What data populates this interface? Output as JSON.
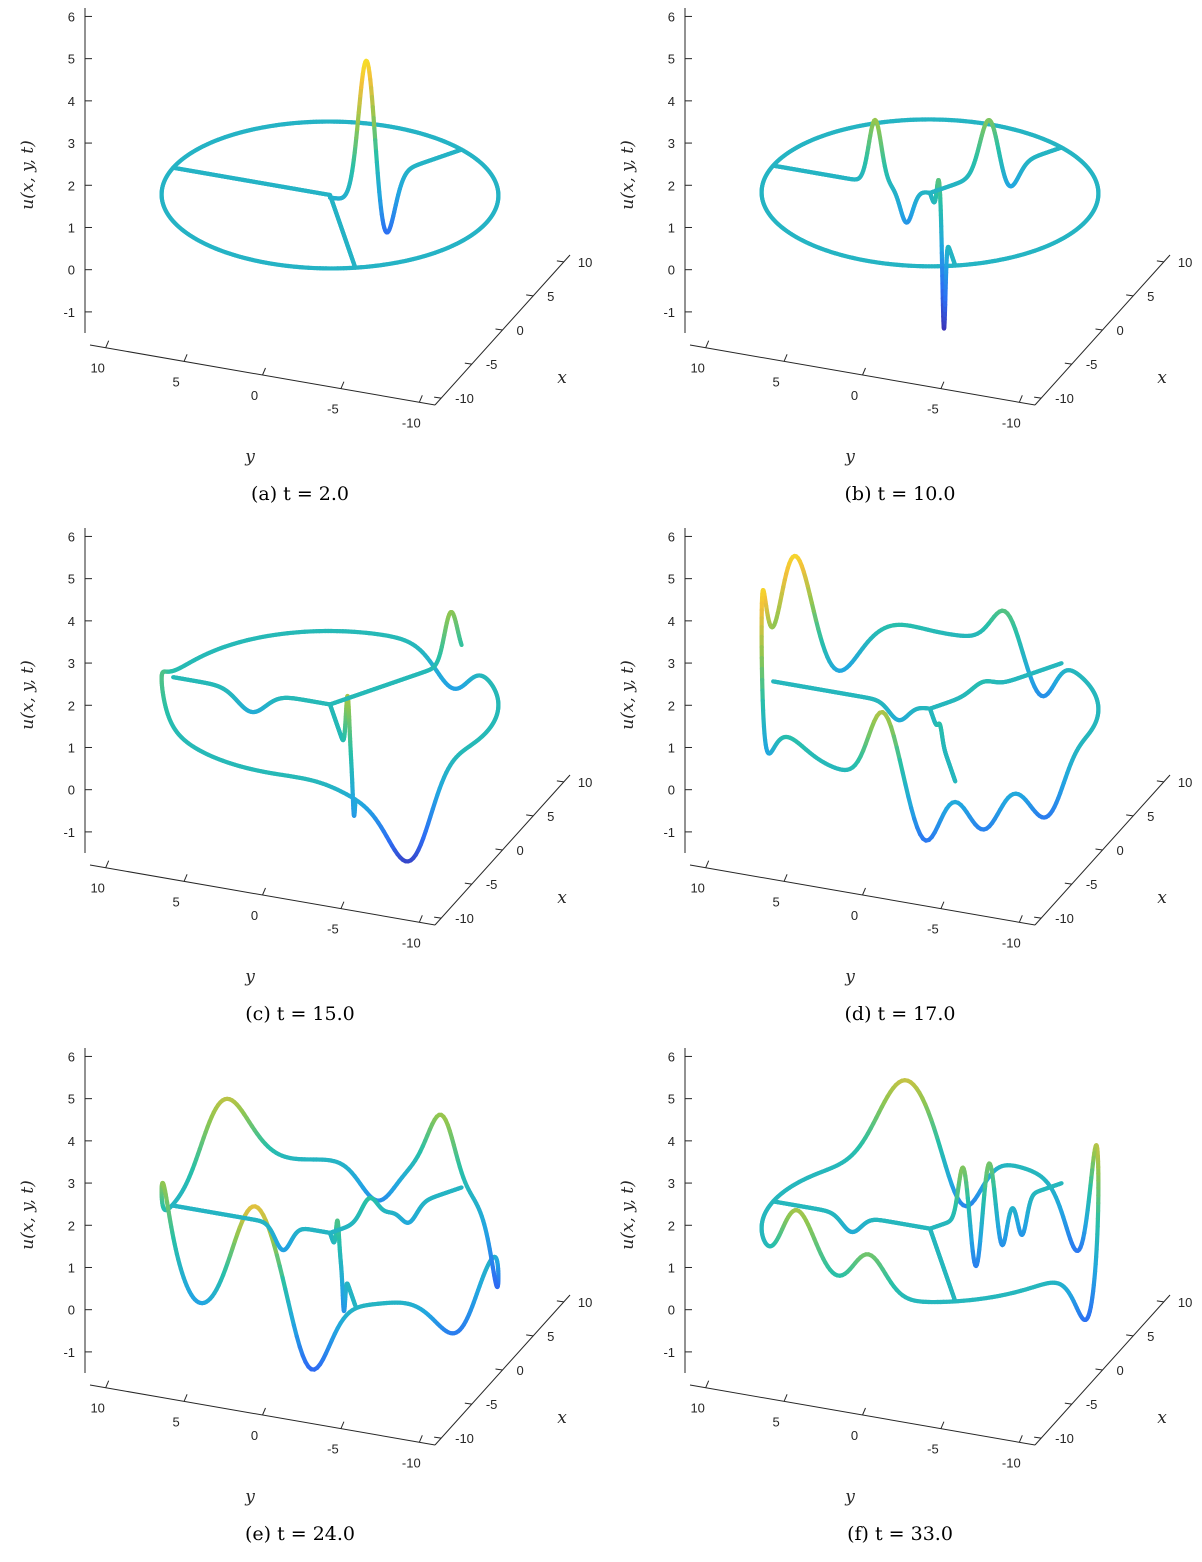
{
  "figure": {
    "captions": [
      "(a) t = 2.0",
      "(b) t = 10.0",
      "(c) t = 15.0",
      "(d) t = 17.0",
      "(e) t = 24.0",
      "(f) t = 33.0"
    ]
  },
  "chart_data": [
    {
      "type": "line3d",
      "panel": "a",
      "caption": "(a) t = 2.0",
      "time": 2.0,
      "zlabel": "u(x, y, t)",
      "xlabel": "x",
      "ylabel": "y",
      "zlim": [
        -1.5,
        6.2
      ],
      "xlim": [
        -11,
        11
      ],
      "ylim": [
        -11,
        11
      ],
      "z_ticks": [
        "-1",
        "0",
        "1",
        "2",
        "3",
        "4",
        "5",
        "6"
      ],
      "x_ticks": [
        "-10",
        "-5",
        "0",
        "5",
        "10"
      ],
      "y_ticks": [
        "10",
        "5",
        "0",
        "-5",
        "-10"
      ],
      "colormap": [
        "#3e26a8",
        "#2d6ef4",
        "#22a7e0",
        "#28c0a8",
        "#90c650",
        "#f3c03a",
        "#f9fb15"
      ],
      "graph": {
        "ring_radius": 10,
        "edge_angles_deg": [
          90,
          210,
          330
        ],
        "ring_level": 0.85,
        "edge_level": 0.85,
        "pulses": [
          {
            "edge": 2,
            "s": 0.28,
            "amp": 3.1,
            "width": 0.6
          },
          {
            "edge": 2,
            "s": 0.42,
            "amp": -1.5,
            "width": 0.7
          },
          {
            "edge": 2,
            "s": 0.12,
            "amp": -0.2,
            "width": 0.8
          }
        ]
      }
    },
    {
      "type": "line3d",
      "panel": "b",
      "caption": "(b) t = 10.0",
      "time": 10.0,
      "zlabel": "u(x, y, t)",
      "xlabel": "x",
      "ylabel": "y",
      "zlim": [
        -1.5,
        6.2
      ],
      "xlim": [
        -11,
        11
      ],
      "ylim": [
        -11,
        11
      ],
      "z_ticks": [
        "-1",
        "0",
        "1",
        "2",
        "3",
        "4",
        "5",
        "6"
      ],
      "x_ticks": [
        "-10",
        "-5",
        "0",
        "5",
        "10"
      ],
      "y_ticks": [
        "10",
        "5",
        "0",
        "-5",
        "-10"
      ],
      "colormap": [
        "#3e26a8",
        "#2d6ef4",
        "#22a7e0",
        "#28c0a8",
        "#90c650",
        "#f3c03a",
        "#f9fb15"
      ],
      "graph": {
        "ring_radius": 10,
        "edge_angles_deg": [
          90,
          210,
          330
        ],
        "ring_level": 0.9,
        "edge_level": 0.9,
        "pulses": [
          {
            "edge": 0,
            "s": 0.35,
            "amp": 1.5,
            "width": 0.4
          },
          {
            "edge": 0,
            "s": 0.15,
            "amp": -0.8,
            "width": 0.4
          },
          {
            "edge": 1,
            "s": 0.35,
            "amp": 0.9,
            "width": 0.8
          },
          {
            "edge": 1,
            "s": 0.55,
            "amp": -2.3,
            "width": 0.6
          },
          {
            "edge": 2,
            "s": 0.45,
            "amp": 1.3,
            "width": 0.7
          },
          {
            "edge": 2,
            "s": 0.6,
            "amp": -0.6,
            "width": 0.7
          }
        ]
      }
    },
    {
      "type": "line3d",
      "panel": "c",
      "caption": "(c) t = 15.0",
      "time": 15.0,
      "zlabel": "u(x, y, t)",
      "xlabel": "x",
      "ylabel": "y",
      "zlim": [
        -1.5,
        6.2
      ],
      "xlim": [
        -11,
        11
      ],
      "ylim": [
        -11,
        11
      ],
      "z_ticks": [
        "-1",
        "0",
        "1",
        "2",
        "3",
        "4",
        "5",
        "6"
      ],
      "x_ticks": [
        "-10",
        "-5",
        "0",
        "5",
        "10"
      ],
      "y_ticks": [
        "10",
        "5",
        "0",
        "-5",
        "-10"
      ],
      "colormap": [
        "#3e26a8",
        "#2d6ef4",
        "#22a7e0",
        "#28c0a8",
        "#90c650",
        "#f3c03a",
        "#f9fb15"
      ],
      "graph": {
        "ring_radius": 10,
        "edge_angles_deg": [
          90,
          210,
          330
        ],
        "ring_level": 1.1,
        "edge_level": 1.1,
        "pulses": [
          {
            "edge": 0,
            "s": 0.5,
            "amp": -0.5,
            "width": 0.9
          },
          {
            "edge": 1,
            "s": 0.7,
            "amp": 1.4,
            "width": 0.7
          },
          {
            "edge": 1,
            "s": 0.95,
            "amp": -1.0,
            "width": 0.5
          },
          {
            "edge": 2,
            "s": 0.92,
            "amp": 1.2,
            "width": 0.5
          }
        ],
        "ring_pulses": [
          {
            "deg": 110,
            "amp": 0.6,
            "width": 12
          },
          {
            "deg": 230,
            "amp": -2.0,
            "width": 8
          },
          {
            "deg": 215,
            "amp": -0.5,
            "width": 10
          },
          {
            "deg": 335,
            "amp": -0.8,
            "width": 8
          }
        ]
      }
    },
    {
      "type": "line3d",
      "panel": "d",
      "caption": "(d) t = 17.0",
      "time": 17.0,
      "zlabel": "u(x, y, t)",
      "xlabel": "x",
      "ylabel": "y",
      "zlim": [
        -1.5,
        6.2
      ],
      "xlim": [
        -11,
        11
      ],
      "ylim": [
        -11,
        11
      ],
      "z_ticks": [
        "-1",
        "0",
        "1",
        "2",
        "3",
        "4",
        "5",
        "6"
      ],
      "x_ticks": [
        "-10",
        "-5",
        "0",
        "5",
        "10"
      ],
      "y_ticks": [
        "10",
        "5",
        "0",
        "-5",
        "-10"
      ],
      "colormap": [
        "#3e26a8",
        "#2d6ef4",
        "#22a7e0",
        "#28c0a8",
        "#90c650",
        "#f3c03a",
        "#f9fb15"
      ],
      "graph": {
        "ring_radius": 10,
        "edge_angles_deg": [
          90,
          210,
          330
        ],
        "ring_level": 1.0,
        "edge_level": 1.0,
        "pulses": [
          {
            "edge": 0,
            "s": 0.2,
            "amp": -0.4,
            "width": 0.6
          },
          {
            "edge": 1,
            "s": 0.4,
            "amp": 0.3,
            "width": 0.8
          },
          {
            "edge": 2,
            "s": 0.4,
            "amp": 0.2,
            "width": 0.8
          }
        ],
        "ring_pulses": [
          {
            "deg": 75,
            "amp": 2.6,
            "width": 9
          },
          {
            "deg": 105,
            "amp": 2.6,
            "width": 9
          },
          {
            "deg": 55,
            "amp": -0.8,
            "width": 8
          },
          {
            "deg": 125,
            "amp": -0.8,
            "width": 8
          },
          {
            "deg": 35,
            "amp": 0.3,
            "width": 10
          },
          {
            "deg": 145,
            "amp": 0.3,
            "width": 10
          },
          {
            "deg": 185,
            "amp": 1.6,
            "width": 5
          },
          {
            "deg": 200,
            "amp": -1.4,
            "width": 5
          },
          {
            "deg": 220,
            "amp": -1.2,
            "width": 6
          },
          {
            "deg": 245,
            "amp": -1.3,
            "width": 8
          },
          {
            "deg": 340,
            "amp": -1.0,
            "width": 6
          },
          {
            "deg": 355,
            "amp": 0.8,
            "width": 5
          }
        ]
      }
    },
    {
      "type": "line3d",
      "panel": "e",
      "caption": "(e) t = 24.0",
      "time": 24.0,
      "zlabel": "u(x, y, t)",
      "xlabel": "x",
      "ylabel": "y",
      "zlim": [
        -1.5,
        6.2
      ],
      "xlim": [
        -11,
        11
      ],
      "ylim": [
        -11,
        11
      ],
      "z_ticks": [
        "-1",
        "0",
        "1",
        "2",
        "3",
        "4",
        "5",
        "6"
      ],
      "x_ticks": [
        "-10",
        "-5",
        "0",
        "5",
        "10"
      ],
      "y_ticks": [
        "10",
        "5",
        "0",
        "-5",
        "-10"
      ],
      "colormap": [
        "#3e26a8",
        "#2d6ef4",
        "#22a7e0",
        "#28c0a8",
        "#90c650",
        "#f3c03a",
        "#f9fb15"
      ],
      "graph": {
        "ring_radius": 10,
        "edge_angles_deg": [
          90,
          210,
          330
        ],
        "ring_level": 0.9,
        "edge_level": 0.9,
        "pulses": [
          {
            "edge": 0,
            "s": 0.3,
            "amp": -0.6,
            "width": 0.5
          },
          {
            "edge": 1,
            "s": 0.3,
            "amp": 0.8,
            "width": 0.6
          },
          {
            "edge": 1,
            "s": 0.55,
            "amp": -0.9,
            "width": 0.5
          },
          {
            "edge": 2,
            "s": 0.3,
            "amp": 0.5,
            "width": 0.6
          },
          {
            "edge": 2,
            "s": 0.6,
            "amp": -0.4,
            "width": 0.6
          }
        ],
        "ring_pulses": [
          {
            "deg": 60,
            "amp": 1.8,
            "width": 10
          },
          {
            "deg": 120,
            "amp": 1.4,
            "width": 10
          },
          {
            "deg": 150,
            "amp": -0.6,
            "width": 9
          },
          {
            "deg": 175,
            "amp": 2.2,
            "width": 8
          },
          {
            "deg": 195,
            "amp": -1.6,
            "width": 6
          },
          {
            "deg": 250,
            "amp": -1.2,
            "width": 10
          },
          {
            "deg": 300,
            "amp": -1.5,
            "width": 10
          },
          {
            "deg": 340,
            "amp": 1.5,
            "width": 6
          },
          {
            "deg": 5,
            "amp": -0.9,
            "width": 6
          }
        ]
      }
    },
    {
      "type": "line3d",
      "panel": "f",
      "caption": "(f) t = 33.0",
      "time": 33.0,
      "zlabel": "u(x, y, t)",
      "xlabel": "x",
      "ylabel": "y",
      "zlim": [
        -1.5,
        6.2
      ],
      "xlim": [
        -11,
        11
      ],
      "ylim": [
        -11,
        11
      ],
      "z_ticks": [
        "-1",
        "0",
        "1",
        "2",
        "3",
        "4",
        "5",
        "6"
      ],
      "x_ticks": [
        "-10",
        "-5",
        "0",
        "5",
        "10"
      ],
      "y_ticks": [
        "10",
        "5",
        "0",
        "-5",
        "-10"
      ],
      "colormap": [
        "#3e26a8",
        "#2d6ef4",
        "#22a7e0",
        "#28c0a8",
        "#90c650",
        "#f3c03a",
        "#f9fb15"
      ],
      "graph": {
        "ring_radius": 10,
        "edge_angles_deg": [
          90,
          210,
          330
        ],
        "ring_level": 1.0,
        "edge_level": 1.0,
        "pulses": [
          {
            "edge": 0,
            "s": 0.5,
            "amp": -0.4,
            "width": 0.6
          },
          {
            "edge": 2,
            "s": 0.25,
            "amp": 1.2,
            "width": 0.35
          },
          {
            "edge": 2,
            "s": 0.35,
            "amp": -1.3,
            "width": 0.35
          },
          {
            "edge": 2,
            "s": 0.45,
            "amp": 1.1,
            "width": 0.35
          },
          {
            "edge": 2,
            "s": 0.55,
            "amp": -1.0,
            "width": 0.35
          },
          {
            "edge": 2,
            "s": 0.7,
            "amp": -0.9,
            "width": 0.35
          }
        ],
        "ring_pulses": [
          {
            "deg": 150,
            "amp": 1.5,
            "width": 9
          },
          {
            "deg": 180,
            "amp": 1.0,
            "width": 6
          },
          {
            "deg": 30,
            "amp": 1.8,
            "width": 9
          },
          {
            "deg": 10,
            "amp": -1.3,
            "width": 6
          },
          {
            "deg": 270,
            "amp": -1.5,
            "width": 9
          },
          {
            "deg": 300,
            "amp": 1.8,
            "width": 9
          },
          {
            "deg": 320,
            "amp": -1.5,
            "width": 8
          }
        ]
      }
    }
  ]
}
